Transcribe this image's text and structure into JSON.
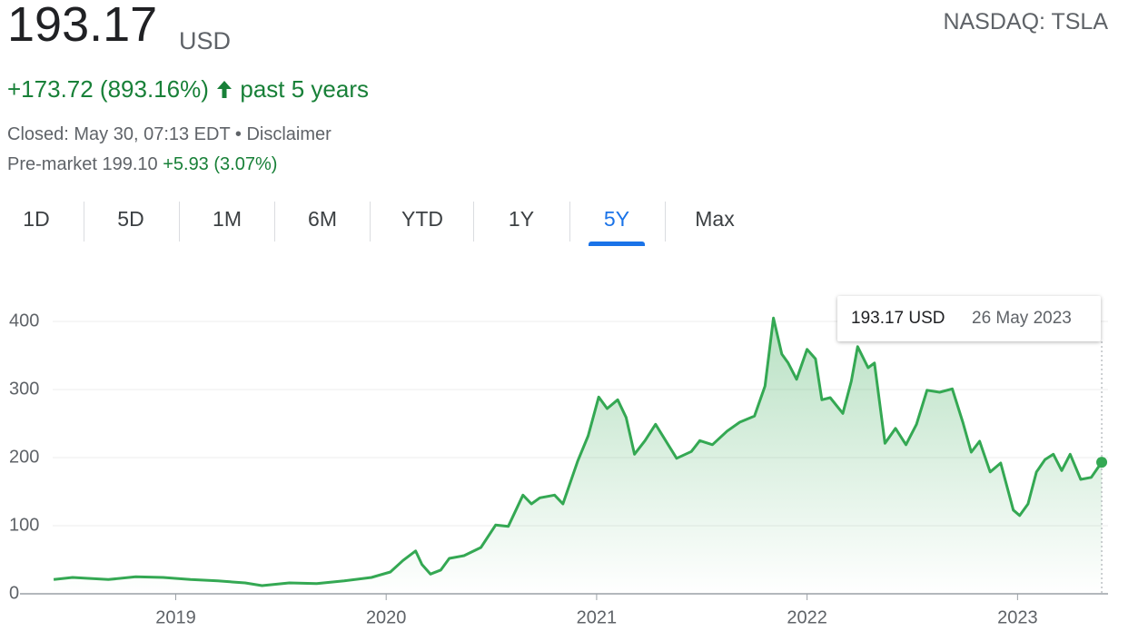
{
  "header": {
    "price": "193.17",
    "currency": "USD",
    "exchange": "NASDAQ: TSLA",
    "change": "+173.72 (893.16%)",
    "period": "past 5 years",
    "closed": "Closed: May 30, 07:13 EDT",
    "separator": "•",
    "disclaimer": "Disclaimer",
    "premarket": "Pre-market 199.10",
    "premarket_change": "+5.93 (3.07%)"
  },
  "tabs": {
    "items": [
      "1D",
      "5D",
      "1M",
      "6M",
      "YTD",
      "1Y",
      "5Y",
      "Max"
    ],
    "selected": "5Y"
  },
  "tooltip": {
    "value": "193.17 USD",
    "date": "26 May 2023"
  },
  "chart_data": {
    "type": "line",
    "color": "#34a853",
    "x": [
      2018.42,
      2018.51,
      2018.68,
      2018.81,
      2018.94,
      2019.07,
      2019.2,
      2019.33,
      2019.41,
      2019.54,
      2019.67,
      2019.8,
      2019.93,
      2020.02,
      2020.08,
      2020.14,
      2020.17,
      2020.21,
      2020.26,
      2020.3,
      2020.37,
      2020.45,
      2020.52,
      2020.58,
      2020.65,
      2020.69,
      2020.73,
      2020.8,
      2020.84,
      2020.91,
      2020.96,
      2021.01,
      2021.05,
      2021.1,
      2021.14,
      2021.18,
      2021.23,
      2021.28,
      2021.34,
      2021.38,
      2021.45,
      2021.49,
      2021.55,
      2021.62,
      2021.68,
      2021.75,
      2021.8,
      2021.84,
      2021.88,
      2021.91,
      2021.95,
      2022.0,
      2022.04,
      2022.07,
      2022.11,
      2022.17,
      2022.21,
      2022.24,
      2022.29,
      2022.32,
      2022.37,
      2022.42,
      2022.47,
      2022.52,
      2022.57,
      2022.63,
      2022.69,
      2022.74,
      2022.78,
      2022.82,
      2022.87,
      2022.92,
      2022.98,
      2023.01,
      2023.05,
      2023.09,
      2023.13,
      2023.17,
      2023.21,
      2023.25,
      2023.3,
      2023.35,
      2023.4
    ],
    "values": [
      21,
      24,
      21,
      25,
      24,
      21,
      19,
      16,
      12,
      16,
      15,
      19,
      24,
      32,
      49,
      63,
      43,
      29,
      35,
      52,
      56,
      68,
      101,
      99,
      145,
      132,
      141,
      145,
      132,
      195,
      232,
      289,
      272,
      285,
      259,
      205,
      225,
      249,
      219,
      199,
      209,
      225,
      219,
      239,
      252,
      261,
      305,
      405,
      352,
      339,
      315,
      359,
      345,
      285,
      288,
      265,
      312,
      363,
      332,
      339,
      221,
      243,
      219,
      249,
      299,
      296,
      301,
      252,
      208,
      224,
      179,
      192,
      123,
      115,
      132,
      179,
      197,
      205,
      181,
      205,
      168,
      171,
      193.17
    ],
    "xlim": [
      2018.26,
      2023.43
    ],
    "ylim": [
      0,
      440
    ],
    "xticks": [
      2019,
      2020,
      2021,
      2022,
      2023
    ],
    "yticks": [
      0,
      100,
      200,
      300,
      400
    ],
    "grid": true
  }
}
